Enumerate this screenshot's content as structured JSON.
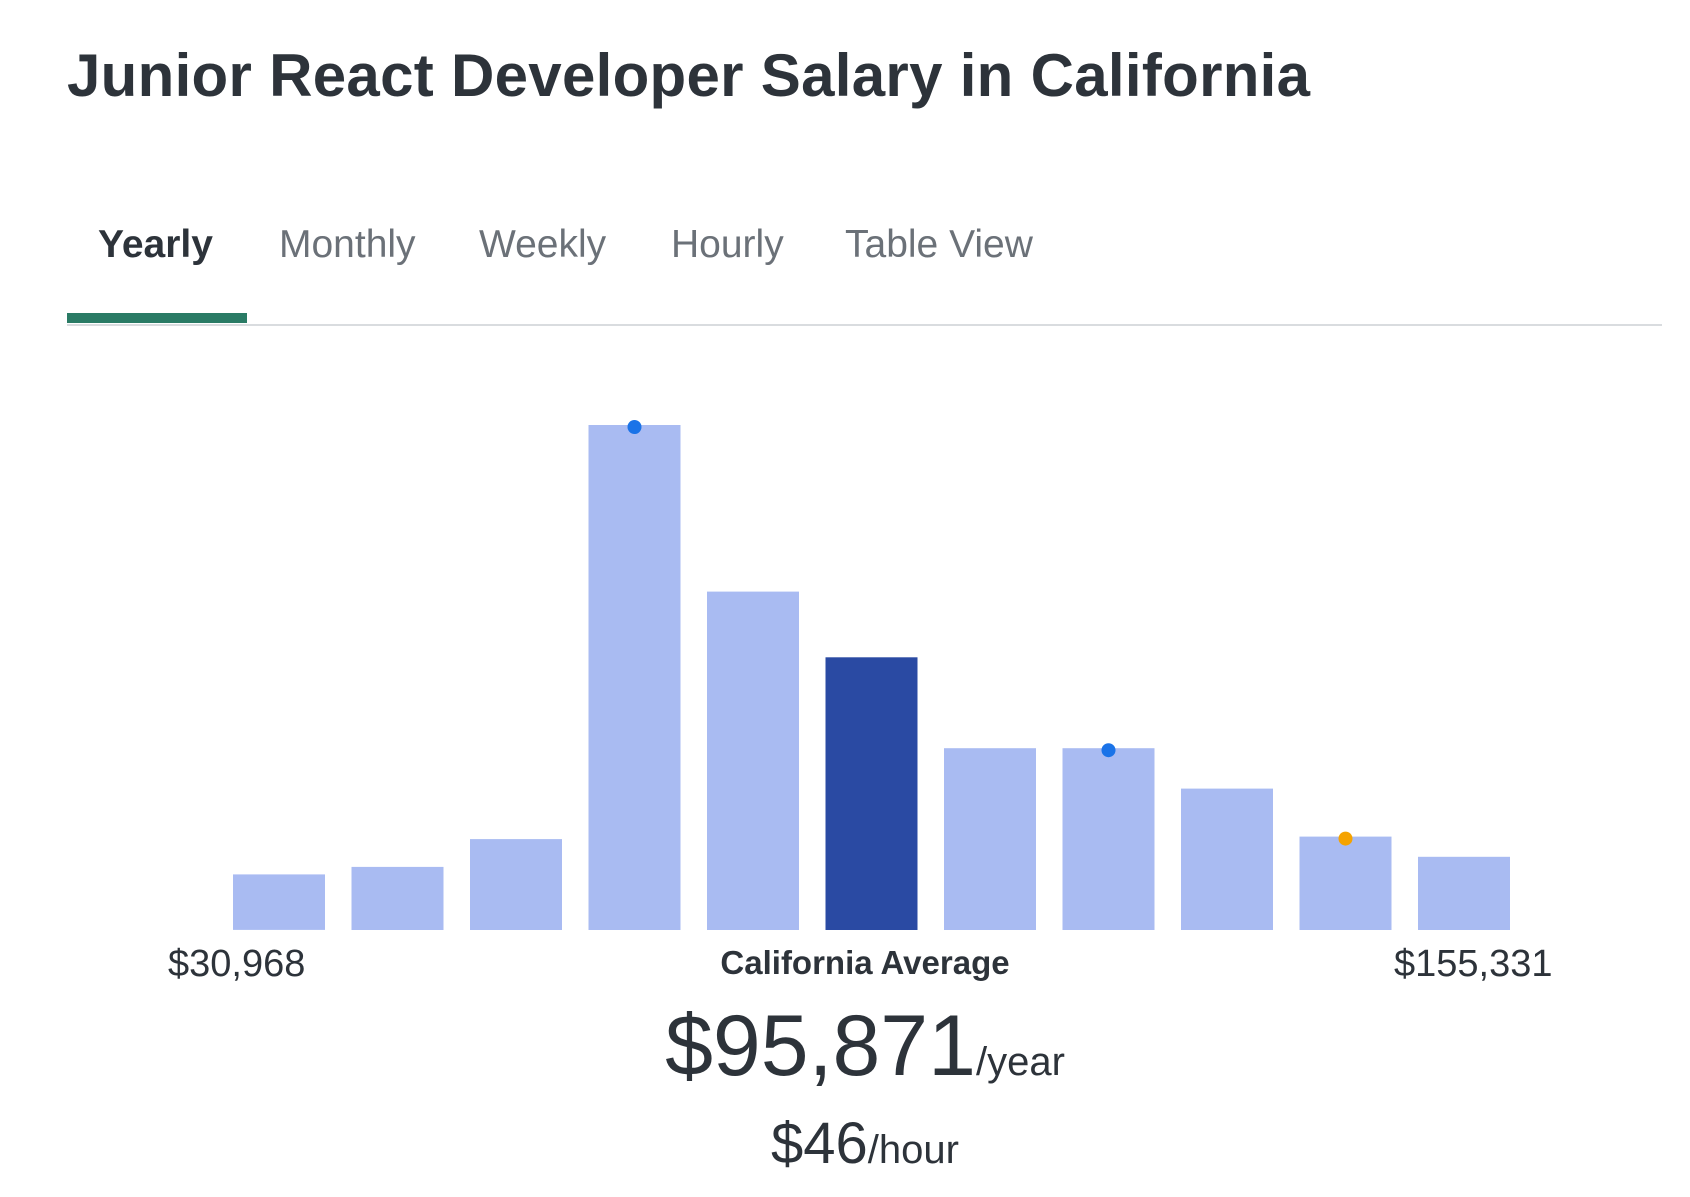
{
  "page": {
    "title": "Junior React Developer Salary in California"
  },
  "tabs": [
    {
      "label": "Yearly",
      "active": true
    },
    {
      "label": "Monthly",
      "active": false
    },
    {
      "label": "Weekly",
      "active": false
    },
    {
      "label": "Hourly",
      "active": false
    },
    {
      "label": "Table View",
      "active": false
    }
  ],
  "colors": {
    "bar": "#a9bbf2",
    "bar_highlight": "#2a4aa3",
    "marker_blue": "#1a73e8",
    "marker_orange": "#f5a300",
    "tab_accent": "#2a7b65"
  },
  "summary": {
    "range_min": "$30,968",
    "range_max": "$155,331",
    "average_label": "California Average",
    "average_yearly": "$95,871",
    "yearly_unit": "/year",
    "average_hourly": "$46",
    "hourly_unit": "/hour"
  },
  "chart_data": {
    "type": "bar",
    "title": "Junior React Developer Salary in California",
    "xlabel": "",
    "ylabel": "",
    "x_range": [
      "$30,968",
      "$155,331"
    ],
    "values": [
      11,
      12.5,
      18,
      100,
      67,
      54,
      36,
      36,
      28,
      18.5,
      14.5
    ],
    "ylim": [
      0,
      100
    ],
    "highlight_index": 5,
    "markers": [
      {
        "bar_index": 3,
        "color": "blue"
      },
      {
        "bar_index": 7,
        "color": "blue"
      },
      {
        "bar_index": 9,
        "color": "orange"
      }
    ],
    "grid": false,
    "legend": "none"
  }
}
